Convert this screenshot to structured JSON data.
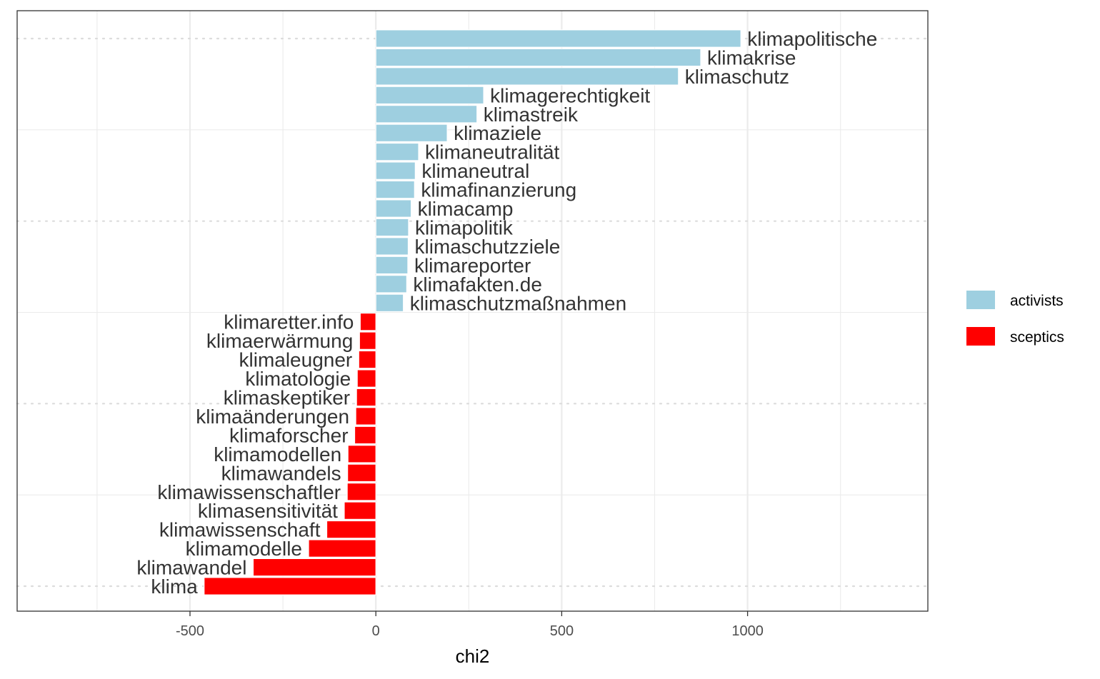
{
  "chart_data": {
    "type": "bar",
    "orientation": "horizontal",
    "title": "",
    "xlabel": "chi2",
    "ylabel": "",
    "xlim": [
      -965,
      1485
    ],
    "x_ticks": [
      -500,
      0,
      500,
      1000
    ],
    "x_tick_labels": [
      "-500",
      "0",
      "500",
      "1000"
    ],
    "grid": true,
    "legend_position": "right",
    "legend": [
      {
        "name": "activists",
        "color": "#9ecfe0"
      },
      {
        "name": "sceptics",
        "color": "#ff0000"
      }
    ],
    "categories": [
      "klimapolitische",
      "klimakrise",
      "klimaschutz",
      "klimagerechtigkeit",
      "klimastreik",
      "klimaziele",
      "klimaneutralität",
      "klimaneutral",
      "klimafinanzierung",
      "klimacamp",
      "klimapolitik",
      "klimaschutzziele",
      "klimareporter",
      "klimafakten.de",
      "klimaschutzmaßnahmen",
      "klimaretter.info",
      "klimaerwärmung",
      "klimaleugner",
      "klimatologie",
      "klimaskeptiker",
      "klimaänderungen",
      "klimaforscher",
      "klimamodellen",
      "klimawandels",
      "klimawissenschaftler",
      "klimasensitivität",
      "klimawissenschaft",
      "klimamodelle",
      "klimawandel",
      "klima"
    ],
    "values": [
      982,
      874,
      814,
      290,
      272,
      192,
      115,
      106,
      104,
      95,
      88,
      87,
      86,
      83,
      74,
      -42,
      -44,
      -46,
      -50,
      -52,
      -54,
      -57,
      -75,
      -76,
      -77,
      -85,
      -132,
      -181,
      -330,
      -462
    ],
    "groups": [
      "activists",
      "activists",
      "activists",
      "activists",
      "activists",
      "activists",
      "activists",
      "activists",
      "activists",
      "activists",
      "activists",
      "activists",
      "activists",
      "activists",
      "activists",
      "sceptics",
      "sceptics",
      "sceptics",
      "sceptics",
      "sceptics",
      "sceptics",
      "sceptics",
      "sceptics",
      "sceptics",
      "sceptics",
      "sceptics",
      "sceptics",
      "sceptics",
      "sceptics",
      "sceptics"
    ]
  }
}
